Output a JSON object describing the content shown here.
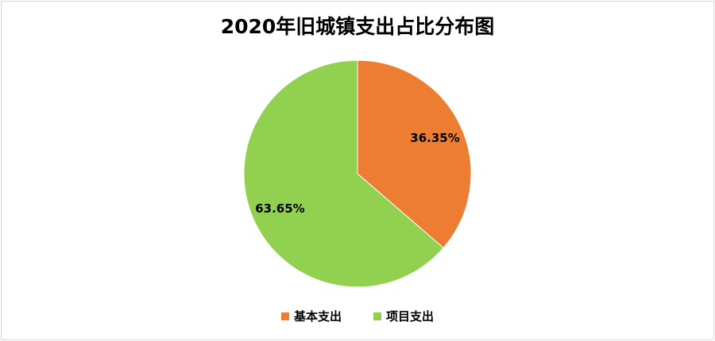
{
  "chart_data": {
    "type": "pie",
    "title": "2020年旧城镇支出占比分布图",
    "categories": [
      "基本支出",
      "项目支出"
    ],
    "values": [
      36.35,
      63.65
    ],
    "data_labels": [
      "36.35%",
      "63.65%"
    ],
    "colors": [
      "#ED7D31",
      "#92D050"
    ],
    "legend_position": "bottom"
  }
}
